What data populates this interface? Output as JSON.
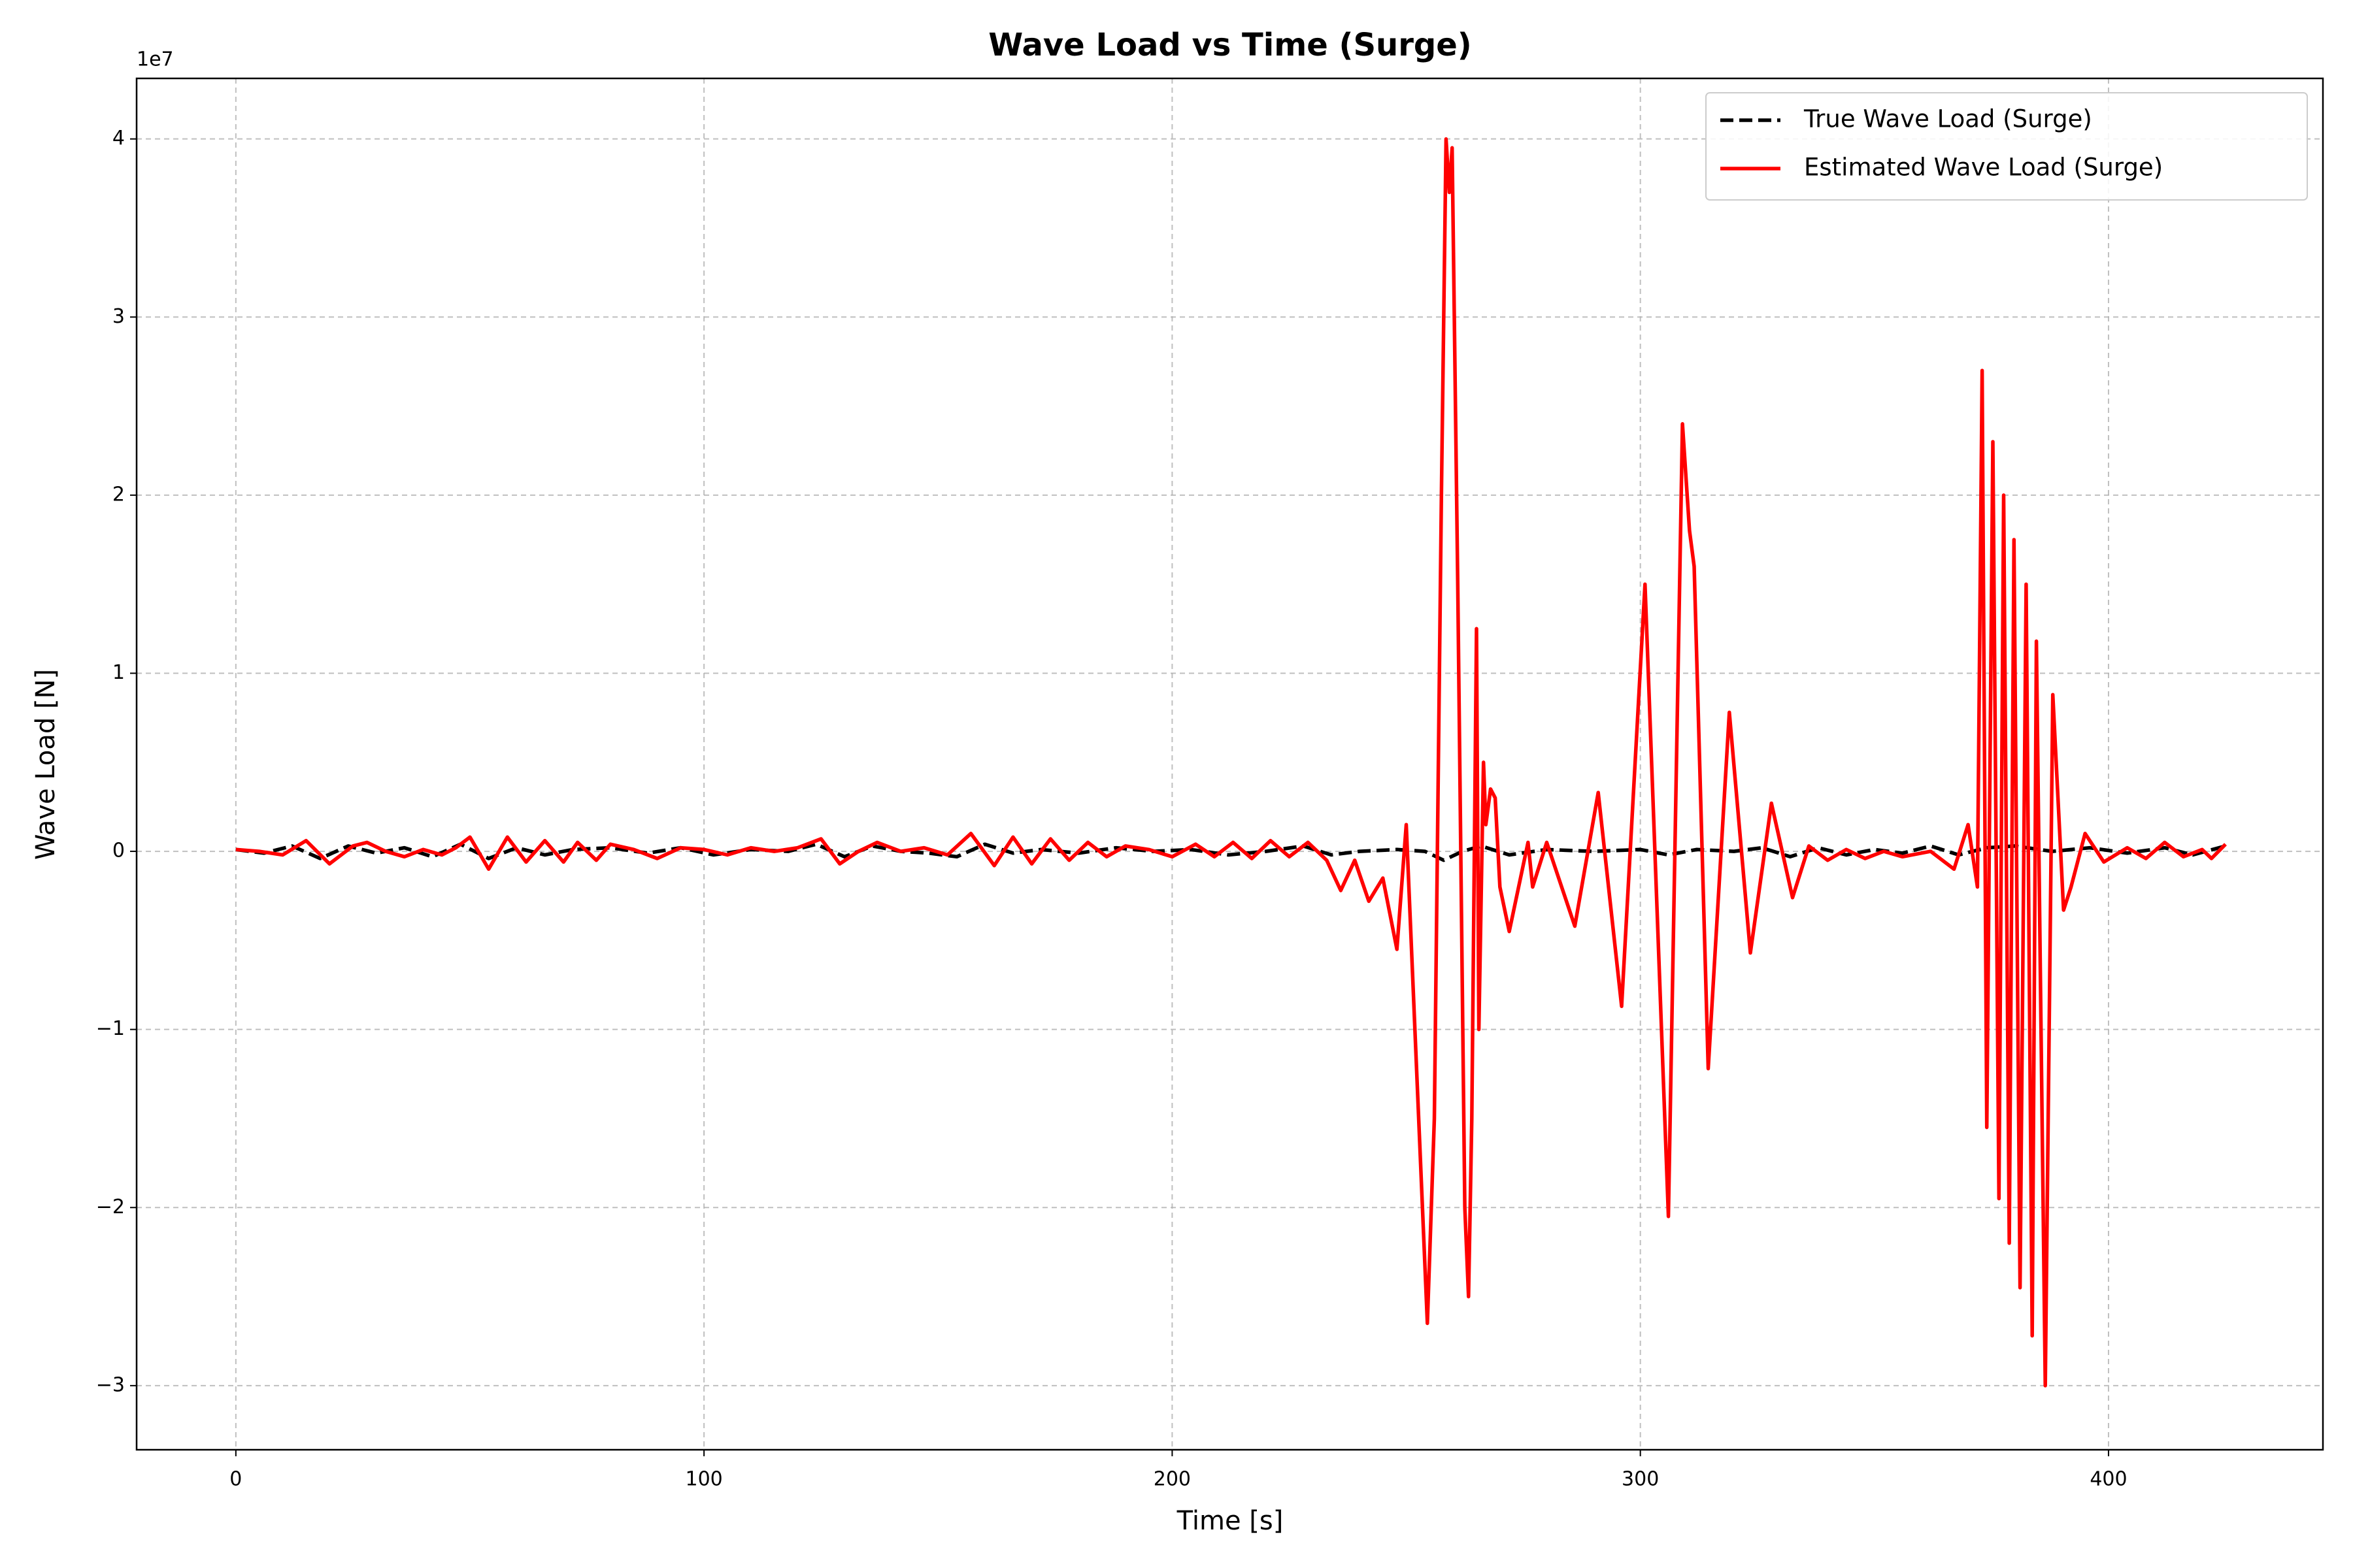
{
  "chart_data": {
    "type": "line",
    "title": "Wave Load vs Time (Surge)",
    "x_label": "Time [s]",
    "y_label": "Wave Load [N]",
    "y_offset_label": "1e7",
    "xlim": [
      -21.2,
      445.8
    ],
    "ylim": [
      -3.36,
      4.34
    ],
    "xticks": [
      0,
      100,
      200,
      300,
      400
    ],
    "yticks": [
      {
        "value": -3,
        "label": "−3"
      },
      {
        "value": -2,
        "label": "−2"
      },
      {
        "value": -1,
        "label": "−1"
      },
      0,
      1,
      2,
      3,
      4
    ],
    "grid": true,
    "legend": "upper right",
    "series": [
      {
        "name": "True Wave Load (Surge)",
        "color": "#000000",
        "dash": true,
        "x": [
          0,
          6,
          12,
          18,
          24,
          30,
          36,
          42,
          48,
          54,
          60,
          66,
          72,
          80,
          88,
          95,
          102,
          110,
          118,
          124,
          130,
          136,
          142,
          148,
          154,
          160,
          166,
          172,
          180,
          188,
          196,
          204,
          212,
          220,
          228,
          234,
          240,
          248,
          254,
          258,
          262,
          266,
          272,
          280,
          290,
          300,
          306,
          312,
          320,
          326,
          332,
          338,
          344,
          350,
          356,
          362,
          368,
          374,
          380,
          388,
          396,
          404,
          412,
          418,
          425
        ],
        "values": [
          0.01,
          -0.01,
          0.03,
          -0.04,
          0.03,
          -0.01,
          0.02,
          -0.03,
          0.04,
          -0.04,
          0.02,
          -0.02,
          0.01,
          0.02,
          -0.01,
          0.02,
          -0.02,
          0.01,
          0,
          0.04,
          -0.03,
          0.03,
          0,
          -0.01,
          -0.03,
          0.04,
          -0.01,
          0.01,
          -0.01,
          0.02,
          0,
          0.01,
          -0.02,
          0,
          0.03,
          -0.02,
          0,
          0.01,
          0,
          -0.05,
          0,
          0.03,
          -0.02,
          0.01,
          0,
          0.01,
          -0.02,
          0.01,
          0,
          0.02,
          -0.03,
          0.02,
          -0.02,
          0.01,
          -0.01,
          0.03,
          -0.02,
          0.02,
          0.03,
          0,
          0.02,
          -0.01,
          0.02,
          -0.02,
          0.03
        ]
      },
      {
        "name": "Estimated Wave Load (Surge)",
        "color": "#ff0000",
        "dash": false,
        "x": [
          0,
          5,
          10,
          15,
          20,
          25,
          28,
          32,
          36,
          40,
          44,
          47,
          50,
          54,
          58,
          62,
          66,
          70,
          73,
          77,
          80,
          85,
          90,
          95,
          100,
          105,
          110,
          115,
          120,
          125,
          129,
          133,
          137,
          142,
          147,
          152,
          157,
          162,
          166,
          170,
          174,
          178,
          182,
          186,
          190,
          195,
          200,
          205,
          209,
          213,
          217,
          221,
          225,
          229,
          233,
          236,
          239,
          242,
          245,
          248,
          250,
          252,
          254.5,
          256,
          257.5,
          258.5,
          259.2,
          259.8,
          261,
          262.5,
          263.3,
          264,
          265,
          265.5,
          266.5,
          267,
          268,
          269,
          270,
          272,
          276,
          277,
          280,
          286,
          291,
          296,
          301,
          306,
          309,
          310.5,
          311.5,
          314.5,
          319,
          323.5,
          328,
          332.5,
          336,
          340,
          344,
          348,
          352,
          356,
          362,
          367,
          370,
          372,
          373,
          374,
          375.3,
          376.6,
          377.6,
          378.8,
          379.8,
          381.1,
          382.4,
          383.7,
          384.6,
          386.5,
          388.1,
          390.4,
          392,
          395,
          399,
          404,
          408,
          412,
          416,
          420,
          422,
          425
        ],
        "values": [
          0.01,
          0,
          -0.02,
          0.06,
          -0.07,
          0.03,
          0.05,
          0,
          -0.03,
          0.01,
          -0.02,
          0.02,
          0.08,
          -0.1,
          0.08,
          -0.06,
          0.06,
          -0.06,
          0.05,
          -0.05,
          0.04,
          0.01,
          -0.04,
          0.02,
          0.01,
          -0.02,
          0.02,
          0,
          0.02,
          0.07,
          -0.07,
          0,
          0.05,
          0,
          0.02,
          -0.02,
          0.1,
          -0.08,
          0.08,
          -0.07,
          0.07,
          -0.05,
          0.05,
          -0.03,
          0.03,
          0.01,
          -0.03,
          0.04,
          -0.03,
          0.05,
          -0.04,
          0.06,
          -0.03,
          0.05,
          -0.05,
          -0.22,
          -0.05,
          -0.28,
          -0.15,
          -0.55,
          0.15,
          -1.1,
          -2.65,
          -1.5,
          2.0,
          4.0,
          3.7,
          3.95,
          1.5,
          -2.0,
          -2.5,
          -1.5,
          1.25,
          -1.0,
          0.5,
          0.15,
          0.35,
          0.3,
          -0.2,
          -0.45,
          0.05,
          -0.2,
          0.05,
          -0.42,
          0.33,
          -0.87,
          1.5,
          -2.05,
          2.4,
          1.8,
          1.6,
          -1.22,
          0.78,
          -0.57,
          0.27,
          -0.26,
          0.03,
          -0.05,
          0.01,
          -0.04,
          0,
          -0.03,
          0,
          -0.1,
          0.15,
          -0.2,
          2.7,
          -1.55,
          2.3,
          -1.95,
          2.0,
          -2.2,
          1.75,
          -2.45,
          1.5,
          -2.72,
          1.18,
          -3.0,
          0.88,
          -0.33,
          -0.2,
          0.1,
          -0.06,
          0.02,
          -0.04,
          0.05,
          -0.03,
          0.01,
          -0.04,
          0.04
        ]
      }
    ]
  }
}
